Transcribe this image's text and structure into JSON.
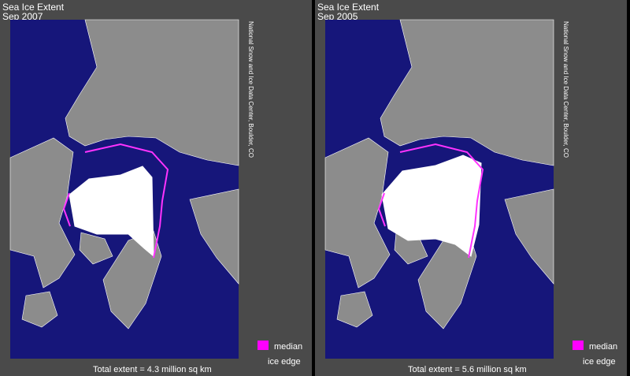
{
  "panels": [
    {
      "title": "Sea Ice Extent",
      "date": "Sep 2007",
      "credit": "National Snow and Ice Data Center, Boulder, CO",
      "legend": {
        "label": "median",
        "sublabel": "ice edge"
      },
      "total": "Total extent =  4.3 million sq km"
    },
    {
      "title": "Sea Ice Extent",
      "date": "Sep 2005",
      "credit": "National Snow and Ice Data Center, Boulder, CO",
      "legend": {
        "label": "median",
        "sublabel": "ice edge"
      },
      "total": "Total extent =  5.6 million sq km"
    }
  ]
}
